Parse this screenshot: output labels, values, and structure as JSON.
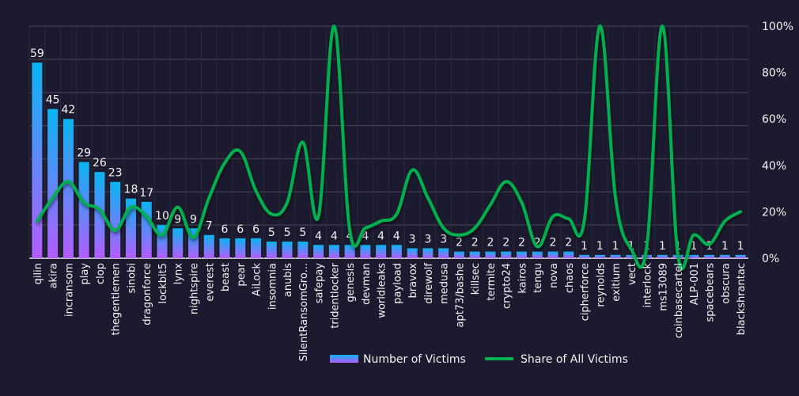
{
  "chart_data": {
    "type": "bar+line",
    "categories": [
      "qilin",
      "akira",
      "incransom",
      "play",
      "clop",
      "thegentlemen",
      "sinobi",
      "dragonforce",
      "lockbit5",
      "lynx",
      "nightspire",
      "everest",
      "beast",
      "pear",
      "AiLock",
      "insomnia",
      "anubis",
      "SilentRansomGro...",
      "safepay",
      "tridentlocker",
      "genesis",
      "devman",
      "worldleaks",
      "payload",
      "bravox",
      "direwolf",
      "medusa",
      "apt73/bashe",
      "killsec",
      "termite",
      "crypto24",
      "kairos",
      "tengu",
      "nova",
      "chaos",
      "cipherforce",
      "reynolds",
      "exitium",
      "vect",
      "interlock",
      "ms13089",
      "coinbasecartel",
      "ALP-001",
      "spacebears",
      "obscura",
      "blackshrantac"
    ],
    "series": [
      {
        "name": "Number of Victims",
        "type": "bar",
        "axis": "left",
        "values": [
          59,
          45,
          42,
          29,
          26,
          23,
          18,
          17,
          10,
          9,
          9,
          7,
          6,
          6,
          6,
          5,
          5,
          5,
          4,
          4,
          4,
          4,
          4,
          4,
          3,
          3,
          3,
          2,
          2,
          2,
          2,
          2,
          2,
          2,
          2,
          1,
          1,
          1,
          1,
          1,
          1,
          1,
          1,
          1,
          1,
          1
        ]
      },
      {
        "name": "Share of All Victims",
        "type": "line",
        "axis": "right",
        "values": [
          16,
          26,
          33,
          24,
          21,
          12,
          22,
          18,
          10,
          22,
          9,
          26,
          41,
          46,
          29,
          19,
          24,
          50,
          18,
          100,
          12,
          13,
          16,
          19,
          38,
          26,
          13,
          10,
          13,
          23,
          33,
          24,
          5,
          18,
          17,
          16,
          100,
          26,
          4,
          5,
          100,
          1,
          10,
          6,
          16,
          20
        ]
      }
    ],
    "left_axis": {
      "range": [
        0,
        70
      ],
      "gridlines": [
        0,
        10,
        20,
        30,
        40,
        50,
        60,
        70
      ],
      "labels_visible": false
    },
    "right_axis": {
      "range": [
        0,
        100
      ],
      "tick_labels": [
        "0%",
        "20%",
        "40%",
        "60%",
        "80%",
        "100%"
      ]
    },
    "legend": {
      "position": "bottom",
      "entries": [
        "Number of Victims",
        "Share of All Victims"
      ]
    },
    "colors": {
      "bar_top": "#0ab4f0",
      "bar_bottom": "#b45cff",
      "line": "#00b050",
      "background": "#1c1a2e",
      "grid": "#4a4858"
    }
  }
}
